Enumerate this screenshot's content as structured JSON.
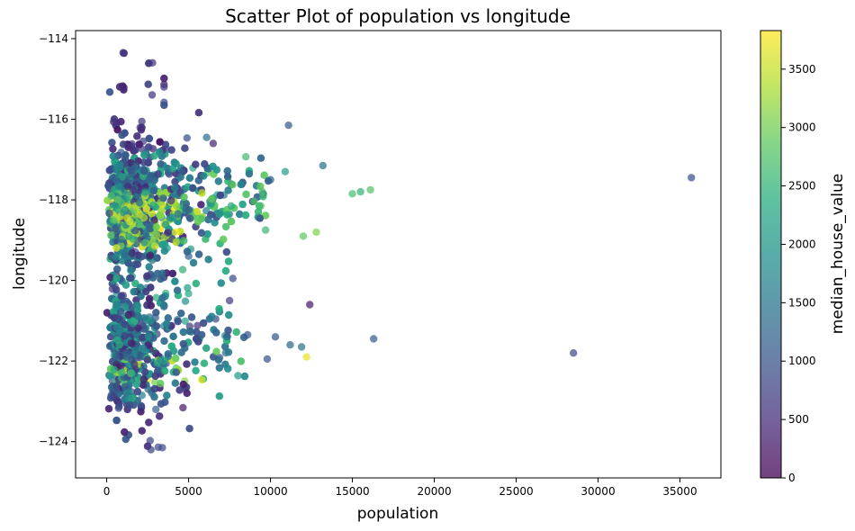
{
  "chart_data": {
    "type": "scatter",
    "title": "Scatter Plot of population vs longitude",
    "xlabel": "population",
    "ylabel": "longitude",
    "xlim": [
      -1900,
      37500
    ],
    "ylim": [
      -124.9,
      -113.8
    ],
    "xticks": [
      0,
      5000,
      10000,
      15000,
      20000,
      25000,
      30000,
      35000
    ],
    "yticks": [
      -124,
      -122,
      -120,
      -118,
      -116,
      -114
    ],
    "grid": false,
    "legend": "none",
    "colorbar": {
      "label": "median_house_value",
      "range": [
        0,
        3830
      ],
      "ticks": [
        0,
        500,
        1000,
        1500,
        2000,
        2500,
        3000,
        3500
      ],
      "colormap": "viridis",
      "alpha": 0.7
    },
    "representative_points": [
      [
        35700,
        -117.45,
        950
      ],
      [
        28500,
        -121.8,
        900
      ],
      [
        16300,
        -121.45,
        1150
      ],
      [
        16100,
        -117.75,
        2800
      ],
      [
        15500,
        -117.8,
        2500
      ],
      [
        15000,
        -117.85,
        2700
      ],
      [
        13200,
        -117.15,
        1450
      ],
      [
        12800,
        -118.8,
        3100
      ],
      [
        12400,
        -120.6,
        300
      ],
      [
        12200,
        -121.9,
        3700
      ],
      [
        12000,
        -118.9,
        2900
      ],
      [
        11900,
        -121.65,
        1500
      ],
      [
        11200,
        -121.6,
        1300
      ],
      [
        11100,
        -116.15,
        1100
      ],
      [
        10900,
        -117.3,
        2200
      ],
      [
        10300,
        -121.4,
        1050
      ],
      [
        10000,
        -117.5,
        1250
      ],
      [
        9800,
        -121.95,
        1050
      ],
      [
        9700,
        -118.75,
        2600
      ],
      [
        9500,
        -117.8,
        2700
      ],
      [
        8600,
        -121.35,
        1050
      ],
      [
        7700,
        -119.95,
        900
      ],
      [
        7600,
        -118.15,
        2300
      ],
      [
        7500,
        -120.5,
        700
      ],
      [
        6500,
        -116.6,
        400
      ],
      [
        6100,
        -116.45,
        1400
      ],
      [
        5000,
        -119.4,
        1200
      ],
      [
        4200,
        -118.8,
        3800
      ],
      [
        3500,
        -115.2,
        700
      ],
      [
        3400,
        -124.15,
        900
      ],
      [
        3000,
        -123.2,
        1200
      ],
      [
        2800,
        -114.6,
        600
      ],
      [
        2700,
        -124.2,
        800
      ],
      [
        1000,
        -114.35,
        700
      ]
    ]
  }
}
